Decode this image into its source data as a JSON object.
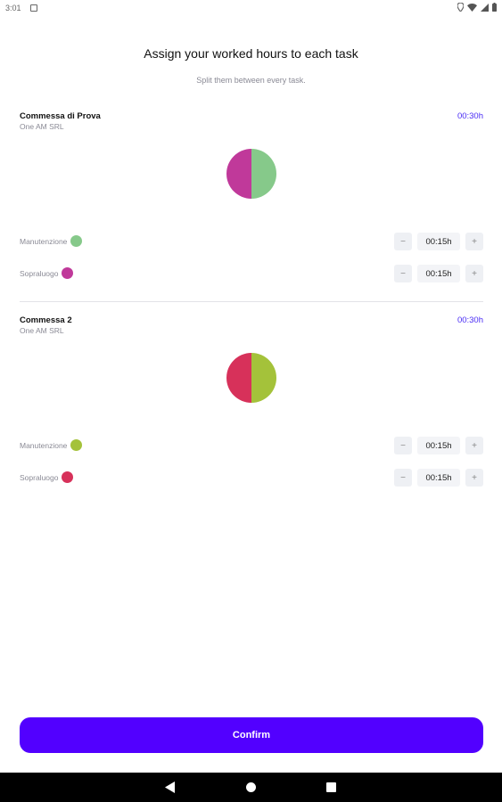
{
  "status_bar": {
    "time": "3:01",
    "icons": [
      "location-icon",
      "wifi-icon",
      "signal-icon",
      "battery-icon"
    ]
  },
  "header": {
    "title": "Assign your worked hours to each task",
    "subtitle": "Split them between every task."
  },
  "projects": [
    {
      "name": "Commessa di Prova",
      "client": "One AM SRL",
      "total": "00:30h",
      "tasks": [
        {
          "label": "Manutenzione",
          "color": "#86c98a",
          "value": "00:15h",
          "share": 0.5
        },
        {
          "label": "Sopraluogo",
          "color": "#c0399a",
          "value": "00:15h",
          "share": 0.5
        }
      ]
    },
    {
      "name": "Commessa 2",
      "client": "One AM SRL",
      "total": "00:30h",
      "tasks": [
        {
          "label": "Manutenzione",
          "color": "#a4c23a",
          "value": "00:15h",
          "share": 0.5
        },
        {
          "label": "Sopraluogo",
          "color": "#d7315a",
          "value": "00:15h",
          "share": 0.5
        }
      ]
    }
  ],
  "stepper": {
    "minus": "−",
    "plus": "+"
  },
  "confirm_label": "Confirm"
}
